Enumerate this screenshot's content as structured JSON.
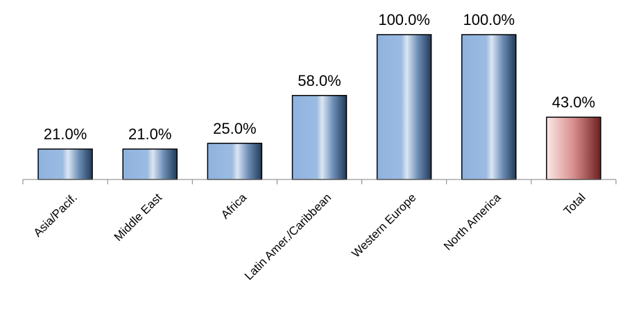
{
  "chart_data": {
    "type": "bar",
    "categories": [
      "Asia/Pacif.",
      "Middle East",
      "Africa",
      "Latin Amer./Caribbean",
      "Western Europe",
      "North America",
      "Total"
    ],
    "values": [
      21.0,
      21.0,
      25.0,
      58.0,
      100.0,
      100.0,
      43.0
    ],
    "value_labels": [
      "21.0%",
      "21.0%",
      "25.0%",
      "58.0%",
      "100.0%",
      "100.0%",
      "43.0%"
    ],
    "ylim": [
      0,
      100
    ],
    "grid": false,
    "colors": {
      "regional_bar_light": "#dbe6f4",
      "regional_bar_mid": "#8fb3de",
      "regional_bar_dark": "#1f3a5a",
      "total_bar_light": "#fbe8e8",
      "total_bar_mid": "#d98e8e",
      "total_bar_dark": "#6e2020",
      "axis": "#808080"
    }
  }
}
